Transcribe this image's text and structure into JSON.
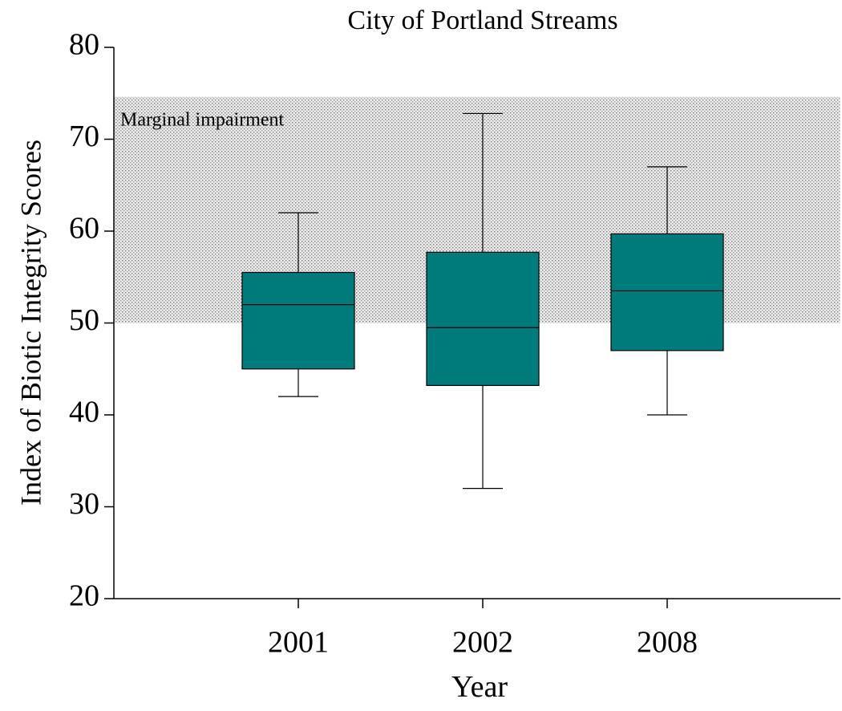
{
  "chart_data": {
    "type": "box",
    "title": "City of Portland Streams",
    "x_label": "Year",
    "y_label": "Index of Biotic Integrity Scores",
    "categories": [
      "2001",
      "2002",
      "2008"
    ],
    "boxes": [
      {
        "min": 42,
        "q1": 45,
        "median": 52,
        "q3": 55.5,
        "max": 62
      },
      {
        "min": 32,
        "q1": 43.2,
        "median": 49.5,
        "q3": 57.7,
        "max": 72.8
      },
      {
        "min": 40,
        "q1": 47,
        "median": 53.5,
        "q3": 59.7,
        "max": 67
      }
    ],
    "color": "#007b7b",
    "shaded_region": {
      "label": "Marginal impairment",
      "range": [
        50,
        74.6
      ]
    },
    "ylim": [
      20,
      80
    ],
    "yticks": [
      20,
      30,
      40,
      50,
      60,
      70,
      80
    ]
  }
}
